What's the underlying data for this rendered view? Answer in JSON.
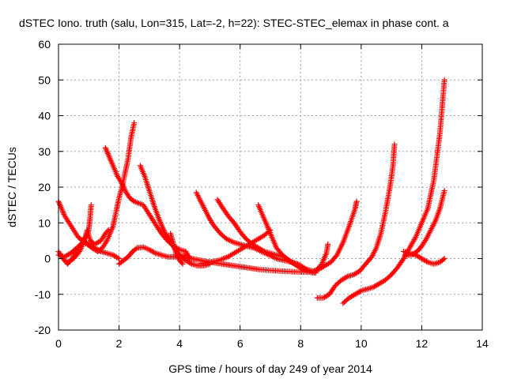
{
  "chart_data": {
    "type": "scatter",
    "title": "dSTEC Iono. truth (salu, Lon=315, Lat=-2, h=22): STEC-STEC_elemax in phase cont. a",
    "xlabel": "GPS time / hours of day 249 of year 2014",
    "ylabel": "dSTEC  / TECUs",
    "xlim": [
      0,
      14
    ],
    "ylim": [
      -20,
      60
    ],
    "x_ticks": [
      0,
      2,
      4,
      6,
      8,
      10,
      12,
      14
    ],
    "y_ticks": [
      -20,
      -10,
      0,
      10,
      20,
      30,
      40,
      50,
      60
    ],
    "x_tick_labels": [
      "0",
      "2",
      "4",
      "6",
      "8",
      "10",
      "12",
      "14"
    ],
    "y_tick_labels": [
      "-20",
      "-10",
      "0",
      "10",
      "20",
      "30",
      "40",
      "50",
      "60"
    ],
    "grid": true,
    "marker": "plus",
    "color": "#ff0000",
    "series": [
      {
        "points": [
          [
            0.0,
            16
          ],
          [
            0.1,
            14
          ],
          [
            0.2,
            12
          ],
          [
            0.35,
            10
          ],
          [
            0.5,
            8
          ],
          [
            0.65,
            6
          ],
          [
            0.8,
            5
          ],
          [
            1.0,
            4
          ],
          [
            1.2,
            3
          ],
          [
            1.4,
            2
          ],
          [
            1.6,
            1.5
          ],
          [
            1.8,
            1
          ],
          [
            2.0,
            0
          ]
        ]
      },
      {
        "points": [
          [
            0.0,
            2
          ],
          [
            0.15,
            0
          ],
          [
            0.3,
            -1.5
          ],
          [
            0.45,
            0
          ],
          [
            0.6,
            2
          ],
          [
            0.75,
            4
          ],
          [
            0.9,
            6
          ],
          [
            1.0,
            8
          ],
          [
            1.05,
            12
          ],
          [
            1.08,
            15
          ]
        ]
      },
      {
        "points": [
          [
            0.0,
            1
          ],
          [
            0.2,
            0.5
          ],
          [
            0.4,
            1.5
          ],
          [
            0.6,
            3
          ],
          [
            0.8,
            4.5
          ],
          [
            0.95,
            4
          ],
          [
            1.1,
            3
          ],
          [
            1.3,
            2
          ],
          [
            1.45,
            3
          ],
          [
            1.6,
            5
          ],
          [
            1.7,
            7
          ],
          [
            1.8,
            9
          ],
          [
            1.9,
            13
          ],
          [
            2.0,
            17
          ],
          [
            2.1,
            20
          ],
          [
            2.2,
            24
          ],
          [
            2.3,
            28
          ],
          [
            2.4,
            34
          ],
          [
            2.5,
            38
          ]
        ]
      },
      {
        "points": [
          [
            0.3,
            -1
          ],
          [
            0.5,
            0
          ],
          [
            0.7,
            2
          ],
          [
            0.85,
            5
          ],
          [
            0.95,
            8
          ],
          [
            1.05,
            5
          ],
          [
            1.2,
            4
          ],
          [
            1.4,
            5
          ],
          [
            1.55,
            7
          ],
          [
            1.65,
            8
          ]
        ]
      },
      {
        "points": [
          [
            1.55,
            31
          ],
          [
            1.65,
            29
          ],
          [
            1.8,
            26
          ],
          [
            1.95,
            23
          ],
          [
            2.1,
            21
          ],
          [
            2.2,
            19
          ],
          [
            2.35,
            17
          ],
          [
            2.5,
            16
          ],
          [
            2.65,
            15.5
          ],
          [
            2.8,
            15
          ],
          [
            2.95,
            13
          ],
          [
            3.1,
            11
          ],
          [
            3.25,
            9
          ],
          [
            3.4,
            7
          ],
          [
            3.6,
            5
          ],
          [
            3.8,
            3.5
          ],
          [
            4.0,
            2.5
          ],
          [
            4.2,
            2
          ],
          [
            4.35,
            0
          ]
        ]
      },
      {
        "points": [
          [
            2.0,
            -1.5
          ],
          [
            2.15,
            -0.5
          ],
          [
            2.3,
            0.5
          ],
          [
            2.45,
            2
          ],
          [
            2.6,
            3
          ],
          [
            2.8,
            3.2
          ],
          [
            3.0,
            2.5
          ],
          [
            3.2,
            1.5
          ],
          [
            3.4,
            1
          ],
          [
            3.6,
            0.5
          ],
          [
            3.8,
            0.5
          ],
          [
            4.0,
            0.5
          ],
          [
            4.2,
            1
          ]
        ]
      },
      {
        "points": [
          [
            2.7,
            26
          ],
          [
            2.85,
            23
          ],
          [
            3.0,
            19
          ],
          [
            3.15,
            15
          ],
          [
            3.3,
            11.5
          ],
          [
            3.45,
            8.5
          ],
          [
            3.6,
            6
          ],
          [
            3.75,
            4
          ],
          [
            3.9,
            2
          ],
          [
            4.05,
            0.5
          ],
          [
            4.2,
            -0.5
          ],
          [
            4.4,
            -1.5
          ],
          [
            4.6,
            -2
          ],
          [
            4.8,
            -2
          ],
          [
            5.0,
            -1.5
          ]
        ]
      },
      {
        "points": [
          [
            3.7,
            7
          ],
          [
            3.8,
            4
          ],
          [
            3.9,
            1
          ],
          [
            4.0,
            -0.5
          ],
          [
            4.1,
            -1.5
          ]
        ]
      },
      {
        "points": [
          [
            4.55,
            18.5
          ],
          [
            4.7,
            16
          ],
          [
            4.85,
            13.5
          ],
          [
            5.0,
            11
          ],
          [
            5.15,
            9
          ],
          [
            5.35,
            7
          ],
          [
            5.55,
            5.5
          ],
          [
            5.8,
            4.5
          ],
          [
            6.0,
            4
          ],
          [
            6.2,
            3.5
          ],
          [
            6.45,
            3
          ],
          [
            6.7,
            2
          ],
          [
            6.95,
            1
          ],
          [
            7.2,
            0
          ],
          [
            7.45,
            -0.5
          ],
          [
            7.7,
            -1
          ],
          [
            7.9,
            -1.5
          ],
          [
            8.1,
            -2.5
          ],
          [
            8.25,
            -3.5
          ],
          [
            8.4,
            -4
          ],
          [
            8.5,
            -4
          ]
        ]
      },
      {
        "points": [
          [
            5.25,
            16.5
          ],
          [
            5.4,
            14.5
          ],
          [
            5.6,
            12
          ],
          [
            5.8,
            10
          ],
          [
            6.0,
            7.5
          ],
          [
            6.2,
            5.5
          ],
          [
            6.4,
            4
          ],
          [
            6.6,
            3
          ],
          [
            6.8,
            2
          ],
          [
            7.0,
            1.5
          ],
          [
            7.2,
            1
          ],
          [
            7.45,
            0.5
          ],
          [
            7.7,
            -1
          ],
          [
            7.9,
            -2
          ],
          [
            8.05,
            -3
          ],
          [
            8.2,
            -3.5
          ]
        ]
      },
      {
        "points": [
          [
            4.1,
            0.5
          ],
          [
            4.4,
            0
          ],
          [
            4.7,
            -0.5
          ],
          [
            5.0,
            -1
          ],
          [
            5.4,
            -1.5
          ],
          [
            5.8,
            -2
          ],
          [
            6.2,
            -2.5
          ],
          [
            6.6,
            -3
          ],
          [
            7.0,
            -3.3
          ],
          [
            7.4,
            -3.5
          ],
          [
            7.8,
            -3.7
          ],
          [
            8.2,
            -3.8
          ],
          [
            8.5,
            -3.5
          ],
          [
            8.7,
            -1.5
          ],
          [
            8.85,
            1.5
          ],
          [
            8.9,
            4
          ]
        ]
      },
      {
        "points": [
          [
            4.7,
            -1.5
          ],
          [
            5.0,
            -1
          ],
          [
            5.3,
            -0.5
          ],
          [
            5.6,
            0.5
          ],
          [
            5.9,
            2
          ],
          [
            6.2,
            3.5
          ],
          [
            6.5,
            5
          ],
          [
            6.8,
            6.5
          ],
          [
            7.0,
            8
          ]
        ]
      },
      {
        "points": [
          [
            6.6,
            15
          ],
          [
            6.75,
            12
          ],
          [
            6.9,
            9
          ],
          [
            7.05,
            6
          ],
          [
            7.2,
            3
          ],
          [
            7.4,
            1
          ],
          [
            7.6,
            -0.5
          ],
          [
            7.8,
            -1.5
          ],
          [
            8.0,
            -2.5
          ],
          [
            8.2,
            -3
          ],
          [
            8.4,
            -3.5
          ],
          [
            8.6,
            -3
          ],
          [
            8.8,
            -2
          ],
          [
            9.0,
            -1
          ],
          [
            9.2,
            1
          ],
          [
            9.4,
            4.5
          ],
          [
            9.6,
            9
          ],
          [
            9.8,
            14
          ],
          [
            9.85,
            16
          ]
        ]
      },
      {
        "points": [
          [
            8.55,
            -11
          ],
          [
            8.75,
            -11
          ],
          [
            8.95,
            -10
          ],
          [
            9.15,
            -7.5
          ],
          [
            9.35,
            -6
          ],
          [
            9.55,
            -5
          ],
          [
            9.75,
            -4.5
          ],
          [
            9.95,
            -3.5
          ],
          [
            10.15,
            -1.5
          ],
          [
            10.35,
            0.5
          ],
          [
            10.5,
            3
          ],
          [
            10.65,
            7
          ],
          [
            10.8,
            13
          ],
          [
            10.95,
            20
          ],
          [
            11.05,
            26
          ],
          [
            11.1,
            32
          ]
        ]
      },
      {
        "points": [
          [
            9.4,
            -12.5
          ],
          [
            9.6,
            -11
          ],
          [
            9.8,
            -10
          ],
          [
            10.0,
            -9
          ],
          [
            10.2,
            -8.5
          ],
          [
            10.4,
            -8
          ],
          [
            10.6,
            -7
          ],
          [
            10.8,
            -6
          ],
          [
            11.0,
            -4.5
          ],
          [
            11.2,
            -2.5
          ],
          [
            11.4,
            0
          ],
          [
            11.6,
            3
          ],
          [
            11.8,
            6
          ],
          [
            12.0,
            10
          ],
          [
            12.2,
            14
          ],
          [
            12.4,
            22
          ],
          [
            12.6,
            35
          ],
          [
            12.75,
            50
          ]
        ]
      },
      {
        "points": [
          [
            11.4,
            2
          ],
          [
            11.6,
            1.5
          ],
          [
            11.8,
            1
          ],
          [
            12.0,
            0
          ],
          [
            12.2,
            -1
          ],
          [
            12.4,
            -1.5
          ],
          [
            12.6,
            -1
          ],
          [
            12.75,
            0
          ]
        ]
      },
      {
        "points": [
          [
            11.45,
            1
          ],
          [
            11.65,
            1
          ],
          [
            11.85,
            2
          ],
          [
            12.0,
            3.5
          ],
          [
            12.15,
            5.5
          ],
          [
            12.3,
            8
          ],
          [
            12.45,
            10.5
          ],
          [
            12.6,
            14
          ],
          [
            12.75,
            19
          ]
        ]
      }
    ]
  }
}
